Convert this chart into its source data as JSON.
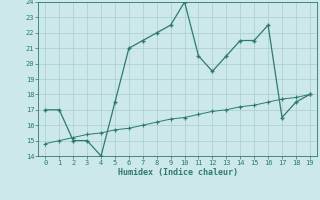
{
  "xlabel": "Humidex (Indice chaleur)",
  "x": [
    0,
    1,
    2,
    3,
    4,
    5,
    6,
    7,
    8,
    9,
    10,
    11,
    12,
    13,
    14,
    15,
    16,
    17,
    18,
    19
  ],
  "y_main": [
    17,
    17,
    15,
    15,
    14,
    17.5,
    21,
    21.5,
    22,
    22.5,
    24,
    20.5,
    19.5,
    20.5,
    21.5,
    21.5,
    22.5,
    16.5,
    17.5,
    18
  ],
  "y_trend": [
    14.8,
    15.0,
    15.2,
    15.4,
    15.5,
    15.7,
    15.8,
    16.0,
    16.2,
    16.4,
    16.5,
    16.7,
    16.9,
    17.0,
    17.2,
    17.3,
    17.5,
    17.7,
    17.8,
    18.0
  ],
  "line_color": "#2d7a6e",
  "bg_color": "#cce8e8",
  "grid_color": "#aacece",
  "ylim": [
    14,
    24
  ],
  "xlim_min": -0.5,
  "xlim_max": 19.5,
  "yticks": [
    14,
    15,
    16,
    17,
    18,
    19,
    20,
    21,
    22,
    23,
    24
  ],
  "xticks": [
    0,
    1,
    2,
    3,
    4,
    5,
    6,
    7,
    8,
    9,
    10,
    11,
    12,
    13,
    14,
    15,
    16,
    17,
    18,
    19
  ],
  "tick_fontsize": 5.0,
  "xlabel_fontsize": 6.0
}
